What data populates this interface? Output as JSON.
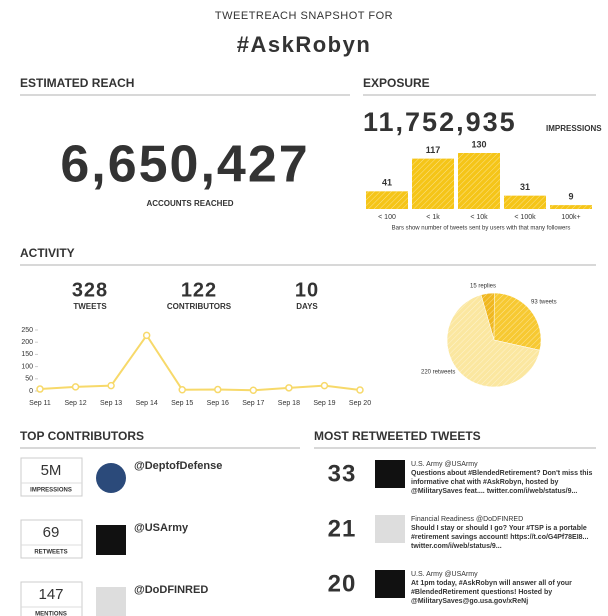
{
  "header": {
    "kicker": "TWEETREACH SNAPSHOT FOR",
    "title": "#AskRobyn"
  },
  "reach": {
    "heading": "ESTIMATED REACH",
    "value": "6,650,427",
    "label": "ACCOUNTS REACHED"
  },
  "exposure": {
    "heading": "EXPOSURE",
    "value": "11,752,935",
    "label": "IMPRESSIONS"
  },
  "activity": {
    "heading": "ACTIVITY",
    "stats": [
      {
        "value": 328,
        "label": "TWEETS"
      },
      {
        "value": 122,
        "label": "CONTRIBUTORS"
      },
      {
        "value": 10,
        "label": "DAYS"
      }
    ]
  },
  "chart_data": [
    {
      "type": "bar",
      "categories": [
        "< 100",
        "< 1k",
        "< 10k",
        "< 100k",
        "100k+"
      ],
      "values": [
        41,
        117,
        130,
        31,
        9
      ],
      "color": "#f5c518",
      "note": "Bars show number of tweets sent by users with that many followers"
    },
    {
      "type": "line",
      "categories": [
        "Sep 11",
        "Sep 12",
        "Sep 13",
        "Sep 14",
        "Sep 15",
        "Sep 16",
        "Sep 17",
        "Sep 18",
        "Sep 19",
        "Sep 20"
      ],
      "values": [
        8,
        17,
        22,
        228,
        5,
        6,
        3,
        13,
        22,
        4
      ],
      "color": "#f7d96a",
      "ylim": [
        0,
        250
      ],
      "yticks": [
        0,
        50,
        100,
        150,
        200,
        250
      ],
      "grid": false
    },
    {
      "type": "pie",
      "values": [
        15,
        93,
        220
      ],
      "value_labels": [
        "15 replies",
        "93 tweets",
        "220 retweets"
      ],
      "colors": [
        "#f0b820",
        "#f7c932",
        "#fbe7a0"
      ]
    }
  ],
  "contributors": {
    "heading": "TOP CONTRIBUTORS",
    "rows": [
      {
        "value": "5M",
        "label": "IMPRESSIONS",
        "name": "@DeptofDefense"
      },
      {
        "value": "69",
        "label": "RETWEETS",
        "name": "@USArmy"
      },
      {
        "value": "147",
        "label": "MENTIONS",
        "name": "@DoDFINRED"
      }
    ]
  },
  "tweets": {
    "heading": "MOST RETWEETED TWEETS",
    "rows": [
      {
        "count": 33,
        "user": "U.S. Army @USArmy",
        "lines": [
          "Questions about #BlendedRetirement? Don't miss this",
          "informative chat with #AskRobyn, hosted by",
          "@MilitarySaves feat.... twitter.com/i/web/status/9..."
        ]
      },
      {
        "count": 21,
        "user": "Financial Readiness @DoDFINRED",
        "lines": [
          "Should I stay or should I go? Your #TSP is a portable",
          "#retirement savings account! https://t.co/G4Pf78EI8...",
          "twitter.com/i/web/status/9..."
        ]
      },
      {
        "count": 20,
        "user": "U.S. Army @USArmy",
        "lines": [
          "At 1pm today, #AskRobyn will answer all of your",
          "#BlendedRetirement questions! Hosted by",
          "@MilitarySaves@go.usa.gov/xReNj"
        ]
      }
    ]
  }
}
